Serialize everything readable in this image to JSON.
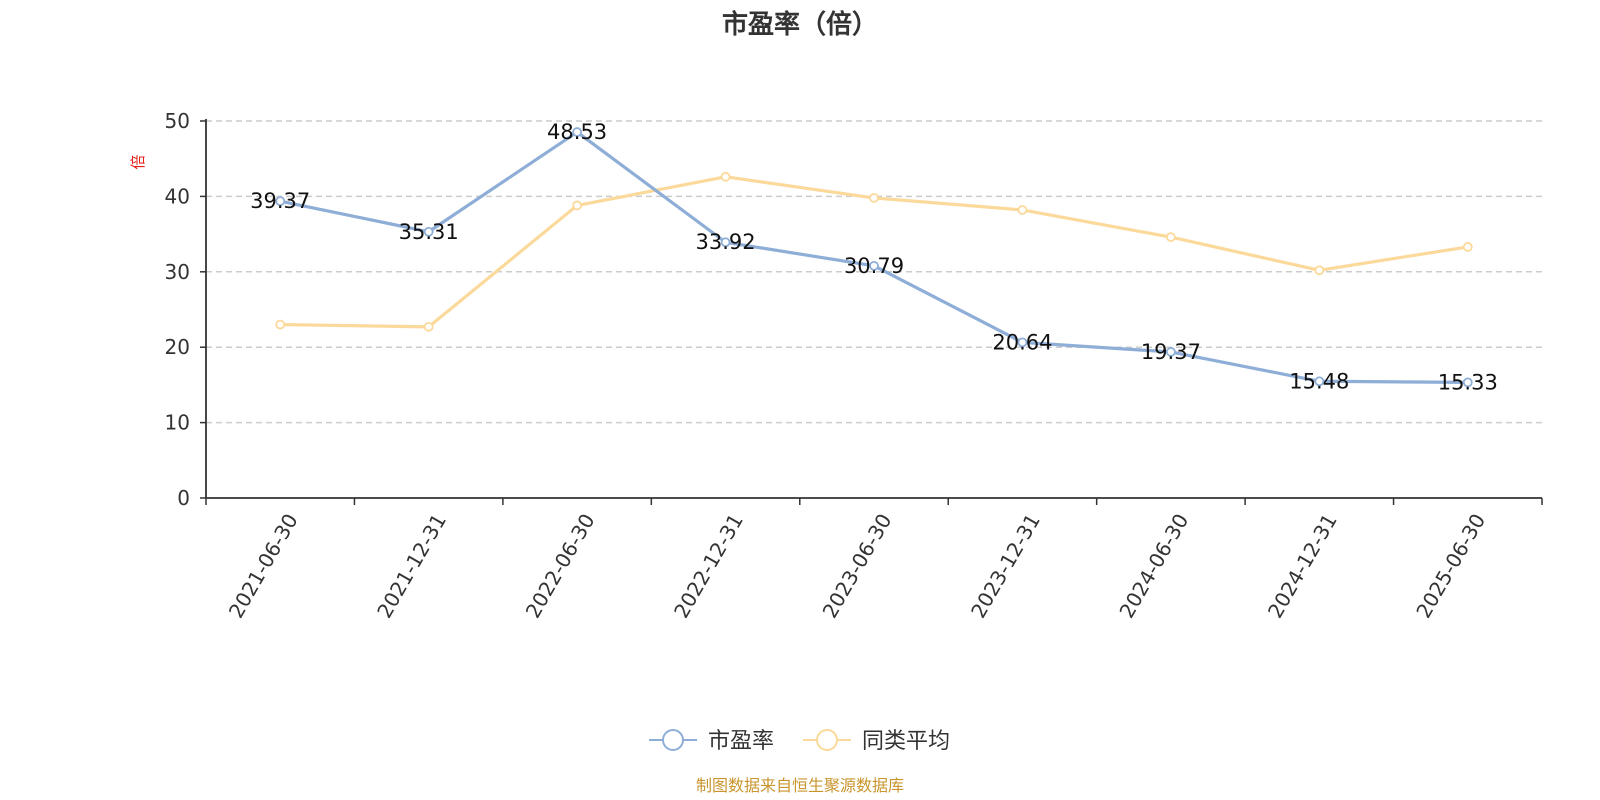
{
  "chart_data": {
    "type": "line",
    "title": "市盈率（倍）",
    "ylabel": "倍",
    "ylim": [
      0,
      50
    ],
    "yticks": [
      0,
      10,
      20,
      30,
      40,
      50
    ],
    "grid": true,
    "legend_position": "bottom",
    "x": [
      "2021-06-30",
      "2021-12-31",
      "2022-06-30",
      "2022-12-31",
      "2023-06-30",
      "2023-12-31",
      "2024-06-30",
      "2024-12-31",
      "2025-06-30"
    ],
    "series": [
      {
        "name": "市盈率",
        "color": "#8eaed8",
        "values": [
          39.37,
          35.31,
          48.53,
          33.92,
          30.79,
          20.64,
          19.37,
          15.48,
          15.33
        ],
        "data_labels": [
          "39.37",
          "35.31",
          "48.53",
          "33.92",
          "30.79",
          "20.64",
          "19.37",
          "15.48",
          "15.33"
        ]
      },
      {
        "name": "同类平均",
        "color": "#fbd99a",
        "values": [
          23.0,
          22.7,
          38.8,
          42.6,
          39.8,
          38.2,
          34.6,
          30.2,
          33.3
        ]
      }
    ],
    "source": "制图数据来自恒生聚源数据库"
  }
}
